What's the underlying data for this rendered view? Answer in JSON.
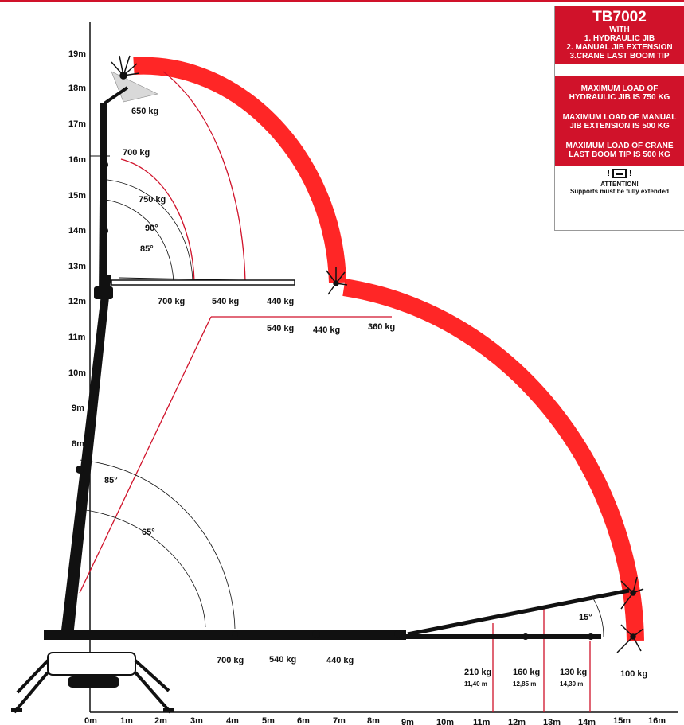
{
  "colors": {
    "accent": "#d0122a",
    "boom": "#111111",
    "envelope": "#ff1a1a"
  },
  "y_axis_labels": [
    "19m",
    "18m",
    "17m",
    "16m",
    "15m",
    "14m",
    "13m",
    "12m",
    "11m",
    "10m",
    "9m",
    "8m"
  ],
  "x_axis_labels": [
    "0m",
    "1m",
    "2m",
    "3m",
    "4m",
    "5m",
    "6m",
    "7m",
    "8m",
    "9m",
    "10m",
    "11m",
    "12m",
    "13m",
    "14m",
    "15m",
    "16m"
  ],
  "upper_loads": {
    "load_650": "650 kg",
    "load_700": "700 kg",
    "load_750": "750 kg"
  },
  "upper_angles": {
    "angle_90": "90°",
    "angle_85": "85°"
  },
  "mid_jib_loads": [
    "700 kg",
    "540 kg",
    "440 kg"
  ],
  "mid_ext_loads": [
    "540 kg",
    "440 kg",
    "360 kg"
  ],
  "lower_angles": {
    "angle_85": "85°",
    "angle_65": "65°",
    "angle_15": "15°"
  },
  "bottom_loads": [
    "700 kg",
    "540 kg",
    "440 kg"
  ],
  "reach_loads": [
    {
      "load": "210 kg",
      "reach": "11,40 m"
    },
    {
      "load": "160 kg",
      "reach": "12,85 m"
    },
    {
      "load": "130 kg",
      "reach": "14,30 m"
    }
  ],
  "tip_load": "100 kg",
  "infobox": {
    "title": "TB7002",
    "with": "WITH",
    "item1": "1. HYDRAULIC JIB",
    "item2": "2. MANUAL JIB EXTENSION",
    "item3": "3.CRANE LAST BOOM TIP",
    "max1": "MAXIMUM LOAD OF HYDRAULIC JIB IS 750 KG",
    "max2": "MAXIMUM LOAD OF MANUAL JIB EXTENSION IS 500 KG",
    "max3": "MAXIMUM LOAD OF CRANE LAST BOOM TIP IS 500 KG",
    "icon": "support-warning-icon",
    "attention": "ATTENTION!",
    "supports": "Supports must be fully extended"
  }
}
